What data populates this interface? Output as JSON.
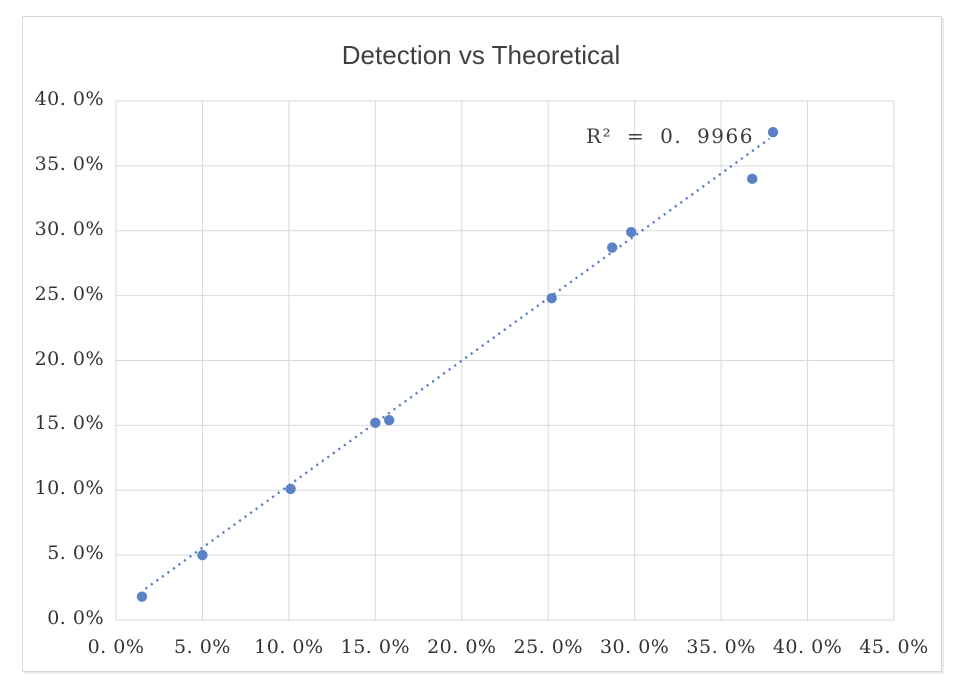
{
  "window": {
    "background": "#ffffff"
  },
  "chart_data": {
    "type": "scatter",
    "title": "Detection vs Theoretical",
    "annotation": "R² = 0. 9966",
    "legend": "none",
    "grid": true,
    "x_axis": {
      "min": 0,
      "max": 45,
      "tick_step": 5,
      "unit": "percent",
      "tick_labels": [
        "0. 0%",
        "5. 0%",
        "10. 0%",
        "15. 0%",
        "20. 0%",
        "25. 0%",
        "30. 0%",
        "35. 0%",
        "40. 0%",
        "45. 0%"
      ]
    },
    "y_axis": {
      "min": 0,
      "max": 40,
      "tick_step": 5,
      "unit": "percent",
      "tick_labels": [
        "40. 0%",
        "35. 0%",
        "30. 0%",
        "25. 0%",
        "20. 0%",
        "15. 0%",
        "10. 0%",
        "5. 0%",
        "0. 0%"
      ]
    },
    "series": [
      {
        "name": "Detection vs Theoretical",
        "marker": "circle",
        "color": "#5B82C5",
        "points": [
          [
            1.5,
            1.8
          ],
          [
            5.0,
            5.0
          ],
          [
            10.1,
            10.1
          ],
          [
            15.0,
            15.2
          ],
          [
            15.8,
            15.4
          ],
          [
            25.2,
            24.8
          ],
          [
            28.7,
            28.7
          ],
          [
            29.8,
            29.9
          ],
          [
            36.8,
            34.0
          ],
          [
            38.0,
            37.6
          ]
        ]
      }
    ],
    "trendline": {
      "type": "linear",
      "line_style": "dotted",
      "color": "#5B82C5",
      "r_squared": "0.9966",
      "start": [
        1.7,
        2.4
      ],
      "end": [
        37.8,
        37.1
      ]
    },
    "colors": {
      "marker": "#5B82C5",
      "trendline": "#5B82C5",
      "gridline": "#D9D9D9",
      "plot_border": "#D9D9D9",
      "title_text": "#404040",
      "tick_text": "#333333",
      "annotation_text": "#3c3c3c",
      "chart_border": "#D6D6D6",
      "background": "#FFFFFF"
    }
  }
}
